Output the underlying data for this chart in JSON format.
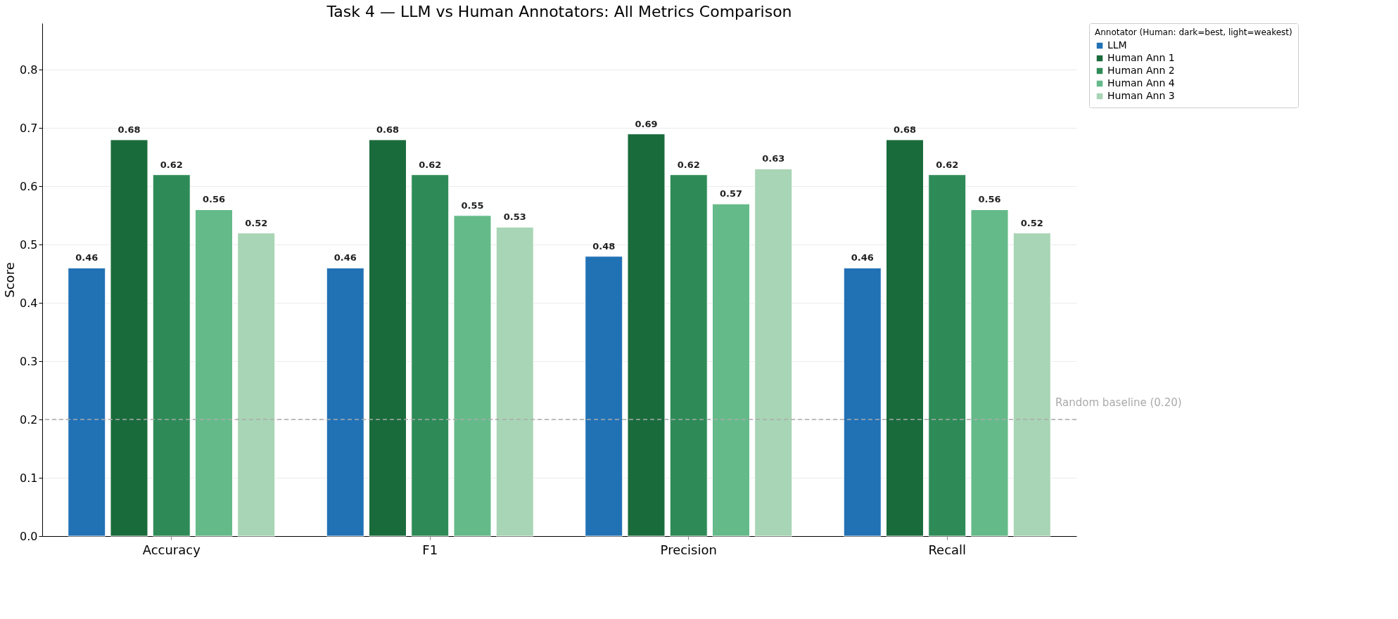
{
  "chart_data": {
    "type": "bar",
    "title": "Task 4 — LLM vs Human Annotators: All Metrics Comparison",
    "ylabel": "Score",
    "legend_title": "Annotator (Human: dark=best, light=weakest)",
    "categories": [
      "Accuracy",
      "F1",
      "Precision",
      "Recall"
    ],
    "series": [
      {
        "name": "LLM",
        "color": "#2171b5",
        "values": [
          0.46,
          0.46,
          0.48,
          0.46
        ]
      },
      {
        "name": "Human Ann 1",
        "color": "#1a6b3c",
        "values": [
          0.68,
          0.68,
          0.69,
          0.68
        ]
      },
      {
        "name": "Human Ann 2",
        "color": "#2e8b57",
        "values": [
          0.62,
          0.62,
          0.62,
          0.62
        ]
      },
      {
        "name": "Human Ann 4",
        "color": "#64ba89",
        "values": [
          0.56,
          0.55,
          0.57,
          0.56
        ]
      },
      {
        "name": "Human Ann 3",
        "color": "#a8d5b5",
        "values": [
          0.52,
          0.53,
          0.63,
          0.52
        ]
      }
    ],
    "ylim": [
      0,
      0.88
    ],
    "yticks": [
      {
        "value": 0,
        "label": "0.0"
      },
      0.1,
      0.2,
      0.3,
      0.4,
      0.5,
      0.6,
      0.7,
      0.8
    ],
    "ref_lines": [
      {
        "axis": "y",
        "value": 0.2,
        "label": "Random baseline (0.20)",
        "color": "#aaaaaa",
        "line_style": "dashed"
      }
    ],
    "data_labels": true,
    "grid": "y",
    "legend": "top right"
  }
}
